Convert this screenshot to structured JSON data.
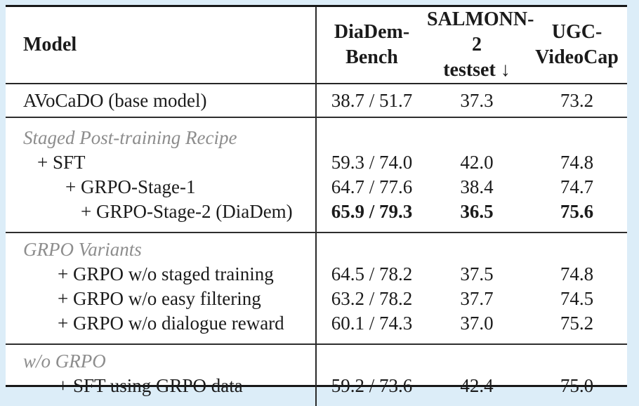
{
  "table": {
    "header": {
      "model": "Model",
      "cols": [
        {
          "line1": "DiaDem-",
          "line2": "Bench"
        },
        {
          "line1": "SALMONN-2",
          "line2": "testset ↓"
        },
        {
          "line1": "UGC-",
          "line2": "VideoCap"
        }
      ]
    },
    "sections": [
      {
        "title": "",
        "rows": [
          {
            "label": "AVoCaDO (base model)",
            "values": [
              "38.7 / 51.7",
              "37.3",
              "73.2"
            ]
          }
        ]
      },
      {
        "title": "Staged Post-training Recipe",
        "rows": [
          {
            "label": "+ SFT",
            "values": [
              "59.3 / 74.0",
              "42.0",
              "74.8"
            ]
          },
          {
            "label": "+ GRPO-Stage-1",
            "values": [
              "64.7 / 77.6",
              "38.4",
              "74.7"
            ]
          },
          {
            "label": "+ GRPO-Stage-2 (DiaDem)",
            "values": [
              "65.9 / 79.3",
              "36.5",
              "75.6"
            ],
            "bold_values": true
          }
        ]
      },
      {
        "title": "GRPO Variants",
        "rows": [
          {
            "label": "+ GRPO w/o staged training",
            "values": [
              "64.5 / 78.2",
              "37.5",
              "74.8"
            ]
          },
          {
            "label": "+ GRPO w/o easy filtering",
            "values": [
              "63.2 / 78.2",
              "37.7",
              "74.5"
            ]
          },
          {
            "label": "+ GRPO w/o dialogue reward",
            "values": [
              "60.1 / 74.3",
              "37.0",
              "75.2"
            ]
          }
        ]
      },
      {
        "title": "w/o GRPO",
        "rows": [
          {
            "label": "+ SFT using GRPO data",
            "values": [
              "59.2 / 73.6",
              "42.4",
              "75.0"
            ]
          }
        ]
      }
    ],
    "colors": {
      "page_background": "#dcedf8",
      "table_background": "#ffffff",
      "text": "#1b1b1b",
      "section_title_gray": "#8d8d8d",
      "rule_dark": "#181818"
    }
  }
}
